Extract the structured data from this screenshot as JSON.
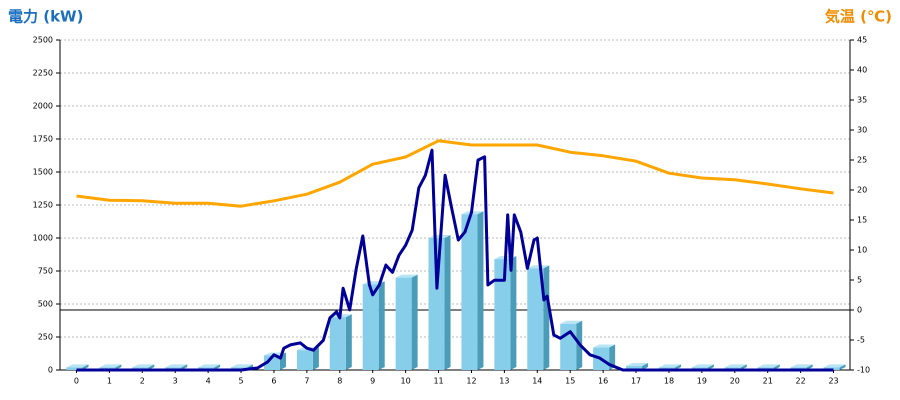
{
  "chart_data": {
    "type": "bar",
    "y_label": "電力 (kW)",
    "y2_label": "気温 (℃)",
    "categories": [
      "0",
      "1",
      "2",
      "3",
      "4",
      "5",
      "6",
      "7",
      "8",
      "9",
      "10",
      "11",
      "12",
      "13",
      "14",
      "15",
      "16",
      "17",
      "18",
      "19",
      "20",
      "21",
      "22",
      "23"
    ],
    "xlim": [
      -0.5,
      23.5
    ],
    "ylim": [
      0,
      2500
    ],
    "yticks": [
      0,
      250,
      500,
      750,
      1000,
      1250,
      1500,
      1750,
      2000,
      2250,
      2500
    ],
    "y2lim": [
      -10,
      45
    ],
    "y2ticks": [
      -10,
      -5,
      0,
      5,
      10,
      15,
      20,
      25,
      30,
      35,
      40,
      45
    ],
    "grid": true,
    "reference_line": {
      "axis": "y2",
      "value": 0,
      "color": "#000000"
    },
    "series": [
      {
        "type": "bar",
        "color": "#87ceeb",
        "values": [
          20,
          20,
          20,
          20,
          20,
          20,
          110,
          150,
          400,
          650,
          700,
          1000,
          1180,
          840,
          770,
          350,
          170,
          30,
          20,
          20,
          20,
          20,
          20,
          20
        ]
      },
      {
        "type": "line",
        "color": "#000099",
        "x": [
          0,
          5,
          5.5,
          5.8,
          6,
          6.2,
          6.3,
          6.5,
          6.8,
          7,
          7.2,
          7.5,
          7.7,
          7.9,
          8,
          8.1,
          8.3,
          8.5,
          8.7,
          8.9,
          9,
          9.2,
          9.4,
          9.6,
          9.8,
          10,
          10.2,
          10.4,
          10.6,
          10.8,
          10.95,
          11.2,
          11.4,
          11.6,
          11.8,
          12,
          12.2,
          12.4,
          12.5,
          12.7,
          13,
          13.1,
          13.2,
          13.3,
          13.5,
          13.7,
          13.9,
          14,
          14.2,
          14.3,
          14.5,
          14.7,
          15,
          15.3,
          15.6,
          15.9,
          16.2,
          16.6,
          23
        ],
        "values": [
          0,
          0,
          15,
          60,
          115,
          90,
          165,
          190,
          205,
          165,
          150,
          225,
          395,
          440,
          395,
          620,
          455,
          770,
          1015,
          645,
          570,
          645,
          795,
          740,
          870,
          945,
          1060,
          1380,
          1475,
          1665,
          620,
          1475,
          1225,
          985,
          1045,
          1195,
          1590,
          1615,
          645,
          680,
          680,
          1175,
          755,
          1175,
          1045,
          770,
          985,
          1000,
          530,
          560,
          265,
          240,
          290,
          190,
          115,
          90,
          40,
          0,
          0
        ]
      },
      {
        "type": "line",
        "axis": "y2",
        "color": "#ffa500",
        "values": [
          19,
          18.3,
          18.2,
          17.8,
          17.8,
          17.3,
          18.2,
          19.3,
          21.3,
          24.3,
          25.5,
          28.2,
          27.5,
          27.5,
          27.5,
          26.3,
          25.7,
          24.8,
          22.8,
          22,
          21.7,
          21,
          20.2,
          19.5
        ]
      }
    ]
  }
}
